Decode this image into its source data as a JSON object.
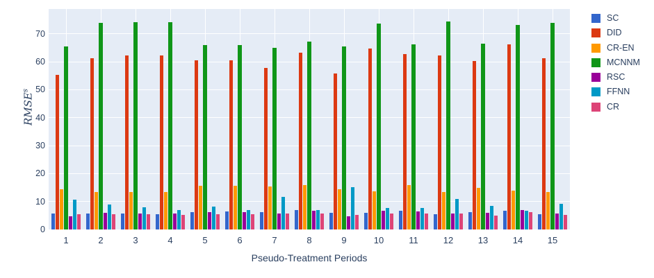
{
  "colors": {
    "plot_bg": "#E5ECF6",
    "grid": "#ffffff",
    "text": "#2a3f5f"
  },
  "chart_data": {
    "type": "bar",
    "title": "",
    "xlabel": "Pseudo-Treatment Periods",
    "ylabel_main": "RMSE",
    "ylabel_sup": "s",
    "categories": [
      "1",
      "2",
      "3",
      "4",
      "5",
      "6",
      "7",
      "8",
      "9",
      "10",
      "11",
      "12",
      "13",
      "14",
      "15"
    ],
    "yticks": [
      0,
      10,
      20,
      30,
      40,
      50,
      60,
      70
    ],
    "ylim": [
      0,
      78.9
    ],
    "grid": true,
    "legend_position": "right",
    "series": [
      {
        "name": "SC",
        "color": "#3366CC",
        "values": [
          5.6,
          5.8,
          5.6,
          5.4,
          6.2,
          6.4,
          6.2,
          7.0,
          6.0,
          6.0,
          6.7,
          5.5,
          6.2,
          6.8,
          5.5
        ]
      },
      {
        "name": "DID",
        "color": "#DC3912",
        "values": [
          55.4,
          61.4,
          62.2,
          62.2,
          60.5,
          60.6,
          57.8,
          63.4,
          55.8,
          64.8,
          62.9,
          62.2,
          60.4,
          66.3,
          61.4
        ]
      },
      {
        "name": "CR-EN",
        "color": "#FF9900",
        "values": [
          14.5,
          13.3,
          13.3,
          13.3,
          15.7,
          15.7,
          15.3,
          16.0,
          14.5,
          13.6,
          15.9,
          13.3,
          14.9,
          14.0,
          13.3
        ]
      },
      {
        "name": "MCNNM",
        "color": "#109618",
        "values": [
          65.6,
          74.0,
          74.1,
          74.2,
          66.0,
          65.9,
          65.1,
          67.2,
          65.4,
          73.7,
          66.2,
          74.4,
          66.5,
          73.1,
          73.9
        ]
      },
      {
        "name": "RSC",
        "color": "#990099",
        "values": [
          4.7,
          6.0,
          5.8,
          5.8,
          6.2,
          6.2,
          5.8,
          6.6,
          4.8,
          6.6,
          6.4,
          5.8,
          5.9,
          7.0,
          5.6
        ]
      },
      {
        "name": "FFNN",
        "color": "#0099C6",
        "values": [
          10.8,
          9.0,
          7.9,
          7.0,
          8.1,
          7.0,
          11.7,
          7.0,
          15.2,
          7.7,
          7.7,
          11.0,
          8.5,
          6.6,
          9.2
        ]
      },
      {
        "name": "CR",
        "color": "#DD4477",
        "values": [
          5.4,
          5.4,
          5.4,
          5.2,
          5.4,
          5.4,
          5.6,
          5.8,
          5.2,
          5.6,
          5.8,
          5.6,
          5.0,
          6.3,
          5.2
        ]
      }
    ]
  }
}
